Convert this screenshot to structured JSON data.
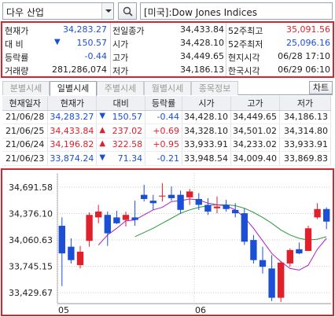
{
  "top": {
    "market": "다우 산업",
    "symbol": "[미국]:Dow Jones Indices"
  },
  "quote": {
    "rows": [
      {
        "l1": "현재가",
        "v1": "34,283.27",
        "l2": "전일종가",
        "v2": "34,433.84",
        "l3": "52주최고",
        "v3": "35,091.56"
      },
      {
        "l1": "대   비",
        "v1": "150.57",
        "l2": "시가",
        "v2": "34,428.10",
        "l3": "52주최저",
        "v3": "25,096.16"
      },
      {
        "l1": "등락률",
        "v1": "-0.44",
        "l2": "고가",
        "v2": "34,449.65",
        "l3": "현지시각",
        "v3": "06/28 17:10"
      },
      {
        "l1": "거래량",
        "v1": "281,286,074",
        "l2": "저가",
        "v2": "34,186.13",
        "l3": "한국시각",
        "v3": "06/29 06:10"
      }
    ]
  },
  "tabs": [
    {
      "label": "분별시세",
      "active": false
    },
    {
      "label": "일별시세",
      "active": true
    },
    {
      "label": "주별시세",
      "active": false
    },
    {
      "label": "월별시세",
      "active": false
    },
    {
      "label": "종목정보",
      "active": false
    }
  ],
  "chart_button": "차트",
  "table": {
    "headers": [
      "현재일자",
      "현재가",
      "대비",
      "등락률",
      "시가",
      "고가",
      "저가"
    ],
    "rows": [
      {
        "date": "21/06/28",
        "price": "34,283.27",
        "dir": "down",
        "change": "150.57",
        "rate": "-0.44",
        "open": "34,428.10",
        "high": "34,449.65",
        "low": "34,186.13"
      },
      {
        "date": "21/06/25",
        "price": "34,433.84",
        "dir": "up",
        "change": "237.02",
        "rate": "+0.69",
        "open": "34,328.10",
        "high": "34,501.02",
        "low": "34,314.80"
      },
      {
        "date": "21/06/24",
        "price": "34,196.82",
        "dir": "up",
        "change": "322.58",
        "rate": "+0.95",
        "open": "33,933.91",
        "high": "34,233.02",
        "low": "33,933.91"
      },
      {
        "date": "21/06/23",
        "price": "33,874.24",
        "dir": "down",
        "change": "71.34",
        "rate": "-0.21",
        "open": "33,948.54",
        "high": "34,009.40",
        "low": "33,869.83"
      }
    ]
  },
  "colors": {
    "up": "#e0202a",
    "down": "#1a4fd6",
    "ma5": "#b01ec8",
    "ma20": "#2a9a3a"
  },
  "chart_data": {
    "type": "candlestick",
    "y_ticks": [
      "34,691.58",
      "34,376.10",
      "34,060.63",
      "33,745.15",
      "33,429.67"
    ],
    "y_tick_values": [
      34691.58,
      34376.1,
      34060.63,
      33745.15,
      33429.67
    ],
    "x_ticks": [
      {
        "label": "05",
        "index": 0
      },
      {
        "label": "06",
        "index": 15
      }
    ],
    "ylim": [
      33300,
      34860
    ],
    "candles": [
      {
        "o": 34230,
        "h": 34330,
        "l": 33510,
        "c": 33900
      },
      {
        "o": 33980,
        "h": 34080,
        "l": 33780,
        "c": 33820
      },
      {
        "o": 33760,
        "h": 33990,
        "l": 33720,
        "c": 33920
      },
      {
        "o": 34050,
        "h": 34390,
        "l": 33980,
        "c": 34360
      },
      {
        "o": 34330,
        "h": 34480,
        "l": 34260,
        "c": 34400
      },
      {
        "o": 34360,
        "h": 34400,
        "l": 33990,
        "c": 34140
      },
      {
        "o": 34330,
        "h": 34410,
        "l": 34250,
        "c": 34260
      },
      {
        "o": 34300,
        "h": 34400,
        "l": 34220,
        "c": 34360
      },
      {
        "o": 34330,
        "h": 34530,
        "l": 34230,
        "c": 34300
      },
      {
        "o": 34600,
        "h": 34720,
        "l": 34520,
        "c": 34550
      },
      {
        "o": 34530,
        "h": 34600,
        "l": 34420,
        "c": 34500
      },
      {
        "o": 34580,
        "h": 34740,
        "l": 34520,
        "c": 34590
      },
      {
        "o": 34600,
        "h": 34700,
        "l": 34530,
        "c": 34560
      },
      {
        "o": 34600,
        "h": 34650,
        "l": 34370,
        "c": 34420
      },
      {
        "o": 34570,
        "h": 34670,
        "l": 34480,
        "c": 34640
      },
      {
        "o": 34550,
        "h": 34620,
        "l": 34420,
        "c": 34480
      },
      {
        "o": 34480,
        "h": 34560,
        "l": 34360,
        "c": 34400
      },
      {
        "o": 34440,
        "h": 34580,
        "l": 34380,
        "c": 34460
      },
      {
        "o": 34480,
        "h": 34540,
        "l": 34400,
        "c": 34430
      },
      {
        "o": 34420,
        "h": 34500,
        "l": 34330,
        "c": 34380
      },
      {
        "o": 34380,
        "h": 34440,
        "l": 34000,
        "c": 34040
      },
      {
        "o": 34060,
        "h": 34120,
        "l": 33780,
        "c": 33820
      },
      {
        "o": 33820,
        "h": 33980,
        "l": 33660,
        "c": 33740
      },
      {
        "o": 33720,
        "h": 33880,
        "l": 33330,
        "c": 33370
      },
      {
        "o": 33370,
        "h": 33810,
        "l": 33320,
        "c": 33790
      },
      {
        "o": 33780,
        "h": 33960,
        "l": 33740,
        "c": 33940
      },
      {
        "o": 33950,
        "h": 34030,
        "l": 33890,
        "c": 33900
      },
      {
        "o": 33930,
        "h": 34230,
        "l": 33930,
        "c": 34200
      },
      {
        "o": 34330,
        "h": 34500,
        "l": 34310,
        "c": 34430
      },
      {
        "o": 34430,
        "h": 34450,
        "l": 34190,
        "c": 34280
      }
    ],
    "ma_short": [
      null,
      null,
      null,
      null,
      34000,
      34120,
      34200,
      34290,
      34300,
      34360,
      34420,
      34450,
      34520,
      34530,
      34550,
      34540,
      34500,
      34480,
      34470,
      34420,
      34330,
      34200,
      34050,
      33900,
      33800,
      33720,
      33700,
      33760,
      33950,
      34080
    ],
    "ma_long": [
      null,
      null,
      null,
      null,
      null,
      null,
      null,
      null,
      34100,
      34150,
      34200,
      34260,
      34320,
      34380,
      34420,
      34450,
      34470,
      34480,
      34480,
      34470,
      34440,
      34390,
      34330,
      34260,
      34180,
      34120,
      34080,
      34060,
      34070,
      34100
    ]
  }
}
